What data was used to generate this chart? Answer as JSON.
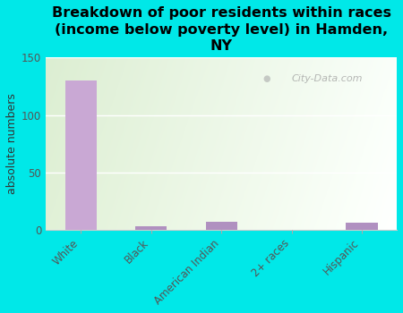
{
  "title": "Breakdown of poor residents within races\n(income below poverty level) in Hamden,\nNY",
  "categories": [
    "White",
    "Black",
    "American Indian",
    "2+ races",
    "Hispanic"
  ],
  "values": [
    130,
    3,
    7,
    0,
    6
  ],
  "bar_color_white": "#c9a8d4",
  "bar_color_small": "#b090c0",
  "ylabel": "absolute numbers",
  "ylim": [
    0,
    150
  ],
  "yticks": [
    0,
    50,
    100,
    150
  ],
  "background_color": "#00e8e8",
  "watermark": "City-Data.com",
  "title_fontsize": 11.5,
  "ylabel_fontsize": 9
}
